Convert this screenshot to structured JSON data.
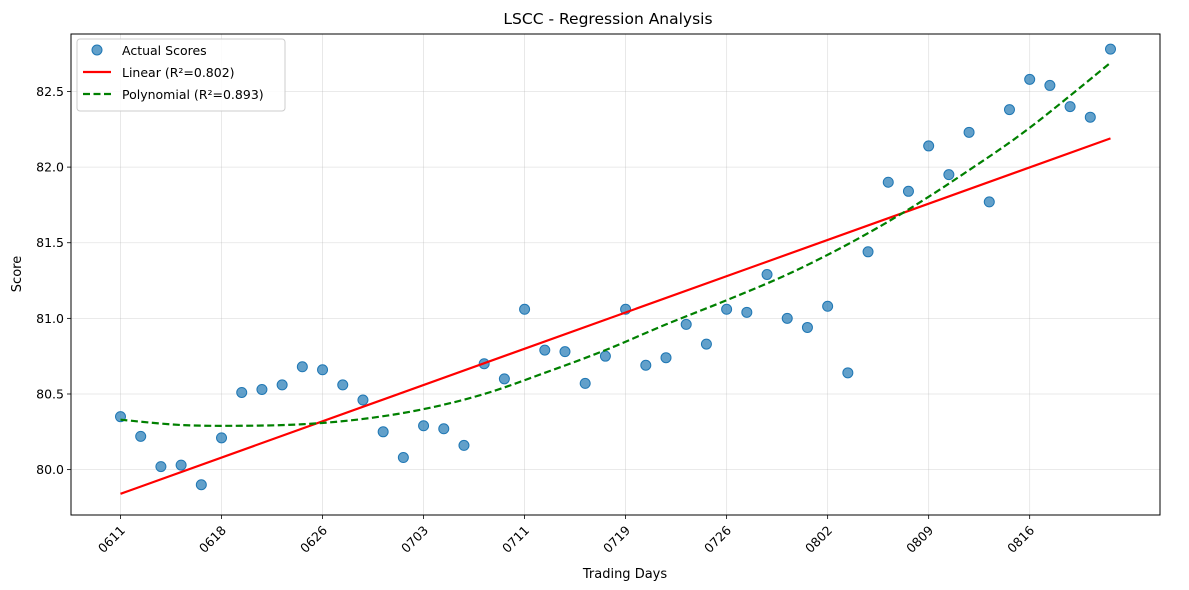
{
  "chart_data": {
    "type": "scatter",
    "title": "LSCC - Regression Analysis",
    "xlabel": "Trading Days",
    "ylabel": "Score",
    "ylim": [
      79.7,
      82.88
    ],
    "yticks": [
      80.0,
      80.5,
      81.0,
      81.5,
      82.0,
      82.5
    ],
    "ytick_labels": [
      "80.0",
      "80.5",
      "81.0",
      "81.5",
      "82.0",
      "82.5"
    ],
    "xtick_indices": [
      0,
      5,
      10,
      15,
      20,
      25,
      30,
      35,
      40,
      45
    ],
    "xtick_labels": [
      "0611",
      "0618",
      "0626",
      "0703",
      "0711",
      "0719",
      "0726",
      "0802",
      "0809",
      "0816"
    ],
    "xlim": [
      -2.45,
      51.45
    ],
    "grid": true,
    "legend_position": "top-left",
    "series": [
      {
        "name": "Actual Scores",
        "kind": "scatter",
        "color": "#1f77b4",
        "x": [
          0,
          1,
          2,
          3,
          4,
          5,
          6,
          7,
          8,
          9,
          10,
          11,
          12,
          13,
          14,
          15,
          16,
          17,
          18,
          19,
          20,
          21,
          22,
          23,
          24,
          25,
          26,
          27,
          28,
          29,
          30,
          31,
          32,
          33,
          34,
          35,
          36,
          37,
          38,
          39,
          40,
          41,
          42,
          43,
          44,
          45,
          46,
          47,
          48,
          49
        ],
        "y": [
          80.35,
          80.22,
          80.02,
          80.03,
          79.9,
          80.21,
          80.51,
          80.53,
          80.56,
          80.68,
          80.66,
          80.56,
          80.46,
          80.25,
          80.08,
          80.29,
          80.27,
          80.16,
          80.7,
          80.6,
          81.06,
          80.79,
          80.78,
          80.57,
          80.75,
          81.06,
          80.69,
          80.74,
          80.96,
          80.83,
          81.06,
          81.04,
          81.29,
          81.0,
          80.94,
          81.08,
          80.64,
          81.44,
          81.9,
          81.84,
          82.14,
          81.95,
          82.23,
          81.77,
          82.38,
          82.58,
          82.54,
          82.4,
          82.33,
          82.78
        ]
      },
      {
        "name": "Linear (R²=0.802)",
        "kind": "line",
        "color": "#ff0000",
        "dash": "solid",
        "x_range": [
          0,
          49
        ],
        "y_at_range": [
          79.84,
          82.19
        ]
      },
      {
        "name": "Polynomial (R²=0.893)",
        "kind": "line",
        "color": "#008000",
        "dash": "dashed",
        "x": [
          0,
          3,
          6,
          9,
          12,
          15,
          18,
          21,
          24,
          27,
          30,
          33,
          36,
          39,
          42,
          45,
          49
        ],
        "y": [
          80.33,
          80.295,
          80.29,
          80.3,
          80.335,
          80.4,
          80.5,
          80.64,
          80.79,
          80.96,
          81.12,
          81.29,
          81.49,
          81.72,
          81.98,
          82.26,
          82.69
        ]
      }
    ]
  }
}
